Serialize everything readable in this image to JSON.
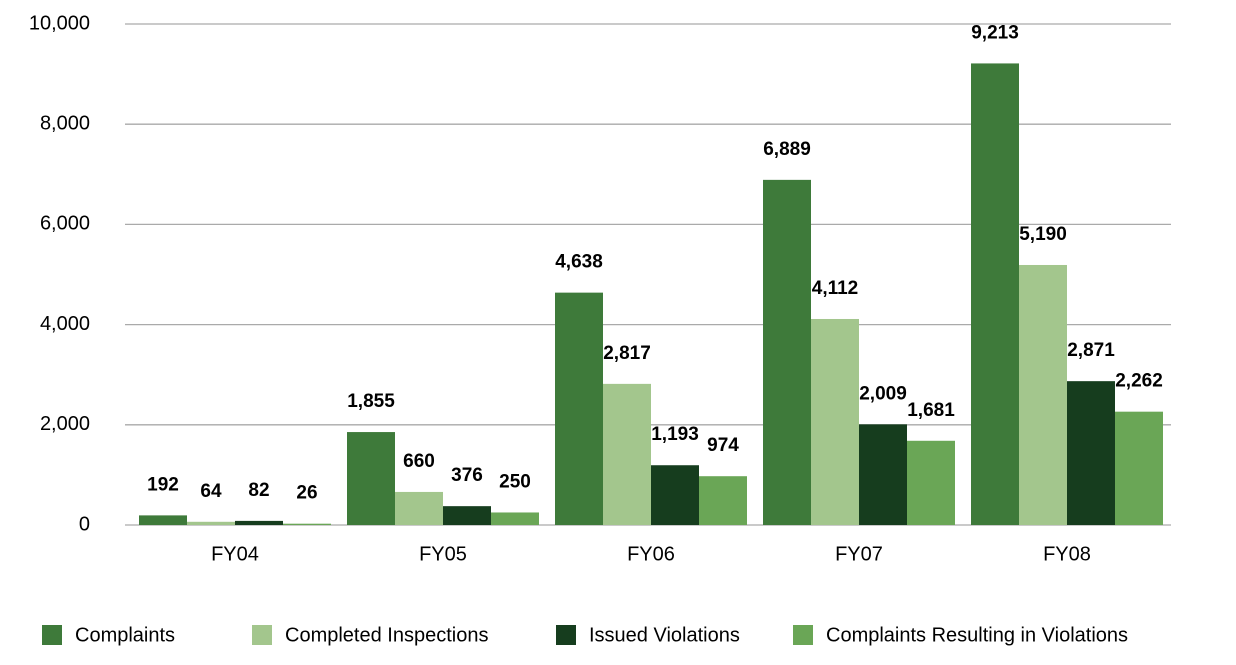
{
  "chart_data": {
    "type": "bar",
    "categories": [
      "FY04",
      "FY05",
      "FY06",
      "FY07",
      "FY08"
    ],
    "series": [
      {
        "name": "Complaints",
        "color": "#3e7a3a",
        "values": [
          192,
          1855,
          4638,
          6889,
          9213
        ],
        "value_labels": [
          "192",
          "1,855",
          "4,638",
          "6,889",
          "9,213"
        ]
      },
      {
        "name": "Completed Inspections",
        "color": "#a3c68d",
        "values": [
          64,
          660,
          2817,
          4112,
          5190
        ],
        "value_labels": [
          "64",
          "660",
          "2,817",
          "4,112",
          "5,190"
        ]
      },
      {
        "name": "Issued Violations",
        "color": "#163d1e",
        "values": [
          82,
          376,
          1193,
          2009,
          2871
        ],
        "value_labels": [
          "82",
          "376",
          "1,193",
          "2,009",
          "2,871"
        ]
      },
      {
        "name": "Complaints Resulting in Violations",
        "color": "#6aa656",
        "values": [
          26,
          250,
          974,
          1681,
          2262
        ],
        "value_labels": [
          "26",
          "250",
          "974",
          "1,681",
          "2,262"
        ]
      }
    ],
    "ylim": [
      0,
      10000
    ],
    "yticks": [
      0,
      {
        "value": 2000,
        "label": "2,000"
      },
      {
        "value": 4000,
        "label": "4,000"
      },
      {
        "value": 6000,
        "label": "6,000"
      },
      {
        "value": 8000,
        "label": "8,000"
      },
      {
        "value": 10000,
        "label": "10,000"
      }
    ],
    "grid": true,
    "legend": "bottom"
  }
}
